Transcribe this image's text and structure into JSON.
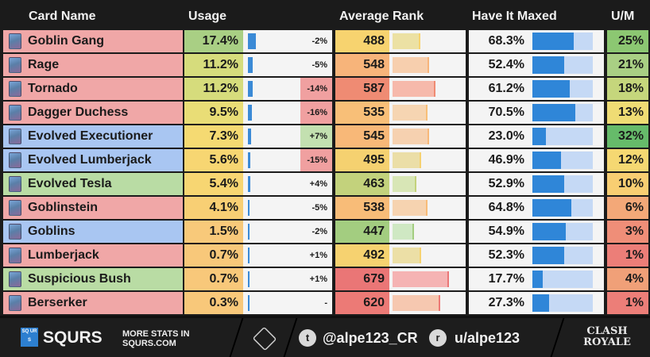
{
  "columns": {
    "card_name": "Card Name",
    "usage": "Usage",
    "average_rank": "Average Rank",
    "have_it_maxed": "Have It Maxed",
    "um": "U/M"
  },
  "rows": [
    {
      "name": "Goblin Gang",
      "icon": "goblin-gang-card-icon",
      "name_color": "#f0a7a7",
      "usage": "17.4%",
      "usage_value": 17.4,
      "usage_color": "#a9cf84",
      "delta": "-2%",
      "delta_color": "#f4f4f4",
      "rank": "488",
      "rank_value": 488,
      "rank_color": "#f7d36f",
      "rank_bar_color": "#ece1a4",
      "maxed": "68.3%",
      "maxed_value": 68.3,
      "um": "25%",
      "um_color": "#8cc772"
    },
    {
      "name": "Rage",
      "icon": "rage-card-icon",
      "name_color": "#f0a7a7",
      "usage": "11.2%",
      "usage_value": 11.2,
      "usage_color": "#d6dc7c",
      "delta": "-5%",
      "delta_color": "#f4f4f4",
      "rank": "548",
      "rank_value": 548,
      "rank_color": "#f7b47a",
      "rank_bar_color": "#f7cfae",
      "maxed": "52.4%",
      "maxed_value": 52.4,
      "um": "21%",
      "um_color": "#a9cf84"
    },
    {
      "name": "Tornado",
      "icon": "tornado-card-icon",
      "name_color": "#f0a7a7",
      "usage": "11.2%",
      "usage_value": 11.2,
      "usage_color": "#d6dc7c",
      "delta": "-14%",
      "delta_color": "#f0a0a0",
      "rank": "587",
      "rank_value": 587,
      "rank_color": "#ef8b73",
      "rank_bar_color": "#f6b9ab",
      "maxed": "61.2%",
      "maxed_value": 61.2,
      "um": "18%",
      "um_color": "#c5d67c"
    },
    {
      "name": "Dagger Duchess",
      "icon": "dagger-duchess-card-icon",
      "name_color": "#f0a7a7",
      "usage": "9.5%",
      "usage_value": 9.5,
      "usage_color": "#e9dd76",
      "delta": "-16%",
      "delta_color": "#f0a0a0",
      "rank": "535",
      "rank_value": 535,
      "rank_color": "#f8bf78",
      "rank_bar_color": "#f6d5b2",
      "maxed": "70.5%",
      "maxed_value": 70.5,
      "um": "13%",
      "um_color": "#efdc74"
    },
    {
      "name": "Evolved Executioner",
      "icon": "evolved-executioner-card-icon",
      "name_color": "#a9c6f2",
      "usage": "7.3%",
      "usage_value": 7.3,
      "usage_color": "#f5da72",
      "delta": "+7%",
      "delta_color": "#c3e0b0",
      "rank": "545",
      "rank_value": 545,
      "rank_color": "#f8b878",
      "rank_bar_color": "#f6d1b0",
      "maxed": "23.0%",
      "maxed_value": 23.0,
      "um": "32%",
      "um_color": "#66bb6a"
    },
    {
      "name": "Evolved Lumberjack",
      "icon": "evolved-lumberjack-card-icon",
      "name_color": "#a9c6f2",
      "usage": "5.6%",
      "usage_value": 5.6,
      "usage_color": "#f7d672",
      "delta": "-15%",
      "delta_color": "#f0a0a0",
      "rank": "495",
      "rank_value": 495,
      "rank_color": "#f5d170",
      "rank_bar_color": "#ebdea7",
      "maxed": "46.9%",
      "maxed_value": 46.9,
      "um": "12%",
      "um_color": "#f5d872"
    },
    {
      "name": "Evolved Tesla",
      "icon": "evolved-tesla-card-icon",
      "name_color": "#b9dca4",
      "usage": "5.4%",
      "usage_value": 5.4,
      "usage_color": "#f7d672",
      "delta": "+4%",
      "delta_color": "#f4f4f4",
      "rank": "463",
      "rank_value": 463,
      "rank_color": "#c3d27c",
      "rank_bar_color": "#d8e6b6",
      "maxed": "52.9%",
      "maxed_value": 52.9,
      "um": "10%",
      "um_color": "#f8ce72"
    },
    {
      "name": "Goblinstein",
      "icon": "goblinstein-card-icon",
      "name_color": "#f0a7a7",
      "usage": "4.1%",
      "usage_value": 4.1,
      "usage_color": "#f8cf74",
      "delta": "-5%",
      "delta_color": "#f4f4f4",
      "rank": "538",
      "rank_value": 538,
      "rank_color": "#f8bc78",
      "rank_bar_color": "#f6d3b0",
      "maxed": "64.8%",
      "maxed_value": 64.8,
      "um": "6%",
      "um_color": "#f3a878"
    },
    {
      "name": "Goblins",
      "icon": "goblins-card-icon",
      "name_color": "#a9c6f2",
      "usage": "1.5%",
      "usage_value": 1.5,
      "usage_color": "#f8c97a",
      "delta": "-2%",
      "delta_color": "#f4f4f4",
      "rank": "447",
      "rank_value": 447,
      "rank_color": "#a3cd80",
      "rank_bar_color": "#cfe8c3",
      "maxed": "54.9%",
      "maxed_value": 54.9,
      "um": "3%",
      "um_color": "#ef8e78"
    },
    {
      "name": "Lumberjack",
      "icon": "lumberjack-card-icon",
      "name_color": "#f0a7a7",
      "usage": "0.7%",
      "usage_value": 0.7,
      "usage_color": "#f8c87a",
      "delta": "+1%",
      "delta_color": "#f4f4f4",
      "rank": "492",
      "rank_value": 492,
      "rank_color": "#f6d270",
      "rank_bar_color": "#ecdfa6",
      "maxed": "52.3%",
      "maxed_value": 52.3,
      "um": "1%",
      "um_color": "#ec7e78"
    },
    {
      "name": "Suspicious Bush",
      "icon": "suspicious-bush-card-icon",
      "name_color": "#b9dca4",
      "usage": "0.7%",
      "usage_value": 0.7,
      "usage_color": "#f8c87a",
      "delta": "+1%",
      "delta_color": "#f4f4f4",
      "rank": "679",
      "rank_value": 679,
      "rank_color": "#ea7676",
      "rank_bar_color": "#f5b3b3",
      "maxed": "17.7%",
      "maxed_value": 17.7,
      "um": "4%",
      "um_color": "#f0a078"
    },
    {
      "name": "Berserker",
      "icon": "berserker-card-icon",
      "name_color": "#f0a7a7",
      "usage": "0.3%",
      "usage_value": 0.3,
      "usage_color": "#f8c87a",
      "delta": "-",
      "delta_color": "#f4f4f4",
      "rank": "620",
      "rank_value": 620,
      "rank_color": "#ec7a76",
      "rank_bar_color": "#f6c8b0",
      "maxed": "27.3%",
      "maxed_value": 27.3,
      "um": "1%",
      "um_color": "#ec7e78"
    }
  ],
  "footer": {
    "brand": "SQURS",
    "brand_box": "SQ UR S",
    "more_line1": "MORE STATS IN",
    "more_line2": "SQURS.COM",
    "twitter_handle": "@alpe123_CR",
    "reddit_handle": "u/alpe123",
    "game_logo_line1": "CLASH",
    "game_logo_line2": "ROYALE"
  },
  "colors": {
    "background": "#1b1b1b",
    "usage_bar": "#3b8ad6",
    "maxed_bar": "#2f86d8",
    "maxed_bar_bg": "#c5d9f5"
  }
}
